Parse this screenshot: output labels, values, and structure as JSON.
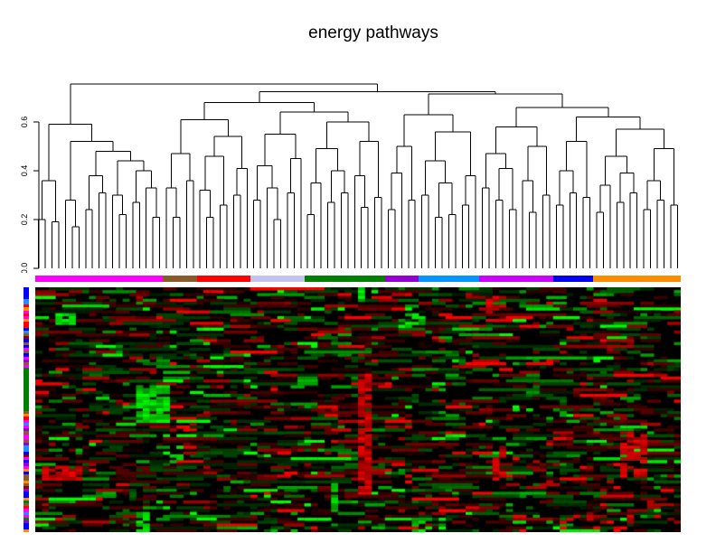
{
  "chart_data": {
    "type": "heatmap",
    "title": "energy pathways",
    "dendrogram_axis": {
      "ticks": [
        0,
        0.2,
        0.4,
        0.6
      ],
      "max_height": 0.755
    },
    "columns": 96,
    "rows": 85,
    "heatmap_palette": {
      "low": "#FF0000",
      "zero": "#000000",
      "high": "#00FF00"
    },
    "column_groups": [
      {
        "color": "#FF00FF",
        "count": 19
      },
      {
        "color": "#8B5A2B",
        "count": 5
      },
      {
        "color": "#FF0000",
        "count": 8
      },
      {
        "color": "#C3C3F0",
        "count": 8
      },
      {
        "color": "#008000",
        "count": 12
      },
      {
        "color": "#9400D3",
        "count": 5
      },
      {
        "color": "#0095FF",
        "count": 9
      },
      {
        "color": "#CC00FF",
        "count": 11
      },
      {
        "color": "#0000F0",
        "count": 6
      },
      {
        "color": "#FF8C00",
        "count": 13
      }
    ],
    "row_colors": [
      "#0000FF",
      "#0000FF",
      "#0000FF",
      "#0000FF",
      "#1E90FF",
      "#1E90FF",
      "#FF0000",
      "#FF8C00",
      "#FF00FF",
      "#FF0000",
      "#FF00FF",
      "#FF8C00",
      "#FF0000",
      "#FF0000",
      "#0000FF",
      "#1E90FF",
      "#8B5A2B",
      "#8B0000",
      "#0000FF",
      "#8B5A2B",
      "#0000FF",
      "#FF00FF",
      "#8B5A2B",
      "#0000FF",
      "#FF00FF",
      "#9400D3",
      "#8B5A2B",
      "#FF00FF",
      "#008000",
      "#008000",
      "#008000",
      "#008000",
      "#008000",
      "#008000",
      "#008000",
      "#008000",
      "#008000",
      "#008000",
      "#008000",
      "#008000",
      "#008000",
      "#008000",
      "#008000",
      "#8B5A2B",
      "#FF8C00",
      "#FF0000",
      "#FF00FF",
      "#1E90FF",
      "#FF00FF",
      "#9400D3",
      "#8B5A2B",
      "#FF00FF",
      "#FF00FF",
      "#8B5A2B",
      "#9400D3",
      "#1E90FF",
      "#1E90FF",
      "#0000FF",
      "#8B0000",
      "#FF00FF",
      "#0000FF",
      "#9400D3",
      "#FF00FF",
      "#FF8C00",
      "#0000FF",
      "#8B5A2B",
      "#8B5A2B",
      "#FF8C00",
      "#8B5A2B",
      "#8B0000",
      "#9400D3",
      "#0000FF",
      "#0000FF",
      "#FF8C00",
      "#008000",
      "#8B5A2B",
      "#FF0000",
      "#FF00FF",
      "#1E90FF",
      "#FF00FF",
      "#008000",
      "#9400D3",
      "#0000FF",
      "#0000FF",
      "#FF8C00"
    ],
    "dendrogram": [
      0.755,
      [
        0.59,
        [
          0.36,
          [
            0.2,
            0,
            0
          ],
          [
            0.19,
            0,
            0
          ]
        ],
        [
          0.52,
          [
            0.28,
            0,
            [
              0.17,
              0,
              0
            ]
          ],
          [
            0.48,
            [
              0.38,
              [
                0.24,
                0,
                0
              ],
              [
                0.31,
                0,
                0
              ]
            ],
            [
              0.44,
              [
                0.3,
                0,
                [
                  0.22,
                  0,
                  0
                ]
              ],
              [
                0.4,
                [
                  0.27,
                  0,
                  0
                ],
                [
                  0.33,
                  0,
                  [
                    0.21,
                    0,
                    0
                  ]
                ]
              ]
            ]
          ]
        ]
      ],
      [
        0.725,
        [
          0.68,
          [
            0.61,
            [
              0.47,
              [
                0.33,
                0,
                [
                  0.21,
                  0,
                  0
                ]
              ],
              [
                0.36,
                0,
                0
              ]
            ],
            [
              0.54,
              [
                0.46,
                [
                  0.32,
                  0,
                  [
                    0.21,
                    0,
                    0
                  ]
                ],
                [
                  0.26,
                  0,
                  0
                ]
              ],
              [
                0.41,
                [
                  0.3,
                  0,
                  0
                ],
                0
              ]
            ]
          ],
          [
            0.64,
            [
              0.55,
              [
                0.42,
                [
                  0.28,
                  0,
                  0
                ],
                [
                  0.33,
                  0,
                  [
                    0.2,
                    0,
                    0
                  ]
                ]
              ],
              [
                0.45,
                [
                  0.31,
                  0,
                  0
                ],
                0
              ]
            ],
            [
              0.6,
              [
                0.49,
                [
                  0.35,
                  [
                    0.22,
                    0,
                    0
                  ],
                  0
                ],
                [
                  0.4,
                  [
                    0.27,
                    0,
                    0
                  ],
                  [
                    0.31,
                    0,
                    0
                  ]
                ]
              ],
              [
                0.52,
                [
                  0.38,
                  0,
                  [
                    0.25,
                    0,
                    0
                  ]
                ],
                [
                  0.29,
                  0,
                  0
                ]
              ]
            ]
          ]
        ],
        [
          0.715,
          [
            0.63,
            [
              0.5,
              [
                0.39,
                [
                  0.24,
                  0,
                  0
                ],
                0
              ],
              [
                0.28,
                0,
                0
              ]
            ],
            [
              0.56,
              [
                0.44,
                [
                  0.3,
                  0,
                  0
                ],
                [
                  0.35,
                  [
                    0.21,
                    0,
                    0
                  ],
                  [
                    0.22,
                    0,
                    0
                  ]
                ]
              ],
              [
                0.38,
                [
                  0.26,
                  0,
                  0
                ],
                0
              ]
            ]
          ],
          [
            0.66,
            [
              0.58,
              [
                0.47,
                [
                  0.33,
                  0,
                  0
                ],
                [
                  0.41,
                  [
                    0.28,
                    0,
                    0
                  ],
                  [
                    0.24,
                    0,
                    0
                  ]
                ]
              ],
              [
                0.5,
                [
                  0.36,
                  0,
                  [
                    0.23,
                    0,
                    0
                  ]
                ],
                [
                  0.3,
                  0,
                  0
                ]
              ]
            ],
            [
              0.62,
              [
                0.52,
                [
                  0.4,
                  [
                    0.26,
                    0,
                    0
                  ],
                  [
                    0.31,
                    0,
                    0
                  ]
                ],
                [
                  0.29,
                  0,
                  0
                ]
              ],
              [
                0.57,
                [
                  0.46,
                  [
                    0.34,
                    [
                      0.23,
                      0,
                      0
                    ],
                    0
                  ],
                  [
                    0.39,
                    [
                      0.27,
                      0,
                      0
                    ],
                    [
                      0.31,
                      0,
                      0
                    ]
                  ]
                ],
                [
                  0.49,
                  [
                    0.36,
                    [
                      0.24,
                      0,
                      0
                    ],
                    [
                      0.28,
                      0,
                      0
                    ]
                  ],
                  [
                    0.26,
                    0,
                    0
                  ]
                ]
              ]
            ]
          ]
        ]
      ]
    ],
    "cell_texture": {
      "seed": 1337,
      "repeat_prob": 0.55,
      "levels": {
        "dim": 50,
        "low": 95,
        "mid": 160,
        "hi": 245
      },
      "distribution": [
        {
          "color": "black",
          "p": 0.4
        },
        {
          "color": "red",
          "level": "dim",
          "p": 0.13
        },
        {
          "color": "green",
          "level": "dim",
          "p": 0.13
        },
        {
          "color": "red",
          "level": "low",
          "p": 0.09
        },
        {
          "color": "green",
          "level": "low",
          "p": 0.09
        },
        {
          "color": "red",
          "level": "mid",
          "p": 0.05
        },
        {
          "color": "green",
          "level": "mid",
          "p": 0.05
        },
        {
          "color": "red",
          "level": "hi",
          "p": 0.03
        },
        {
          "color": "green",
          "level": "hi",
          "p": 0.03
        }
      ],
      "hotspots": [
        {
          "c0": 15,
          "c1": 19,
          "r0": 34,
          "r1": 46,
          "color": "green",
          "strength": 0.85
        },
        {
          "c0": 48,
          "c1": 49,
          "r0": 30,
          "r1": 70,
          "color": "red",
          "strength": 0.75
        },
        {
          "c0": 48,
          "c1": 48,
          "r0": 0,
          "r1": 4,
          "color": "green",
          "strength": 1.0
        },
        {
          "c0": 1,
          "c1": 6,
          "r0": 62,
          "r1": 66,
          "color": "red",
          "strength": 0.7
        },
        {
          "c0": 87,
          "c1": 90,
          "r0": 50,
          "r1": 65,
          "color": "red",
          "strength": 0.55
        },
        {
          "c0": 67,
          "c1": 69,
          "r0": 3,
          "r1": 9,
          "color": "red",
          "strength": 0.6
        },
        {
          "c0": 68,
          "c1": 69,
          "r0": 56,
          "r1": 66,
          "color": "red",
          "strength": 0.55
        },
        {
          "c0": 54,
          "c1": 57,
          "r0": 8,
          "r1": 13,
          "color": "green",
          "strength": 0.55
        },
        {
          "c0": 20,
          "c1": 22,
          "r0": 55,
          "r1": 60,
          "color": "green",
          "strength": 0.5
        },
        {
          "c0": 3,
          "c1": 5,
          "r0": 9,
          "r1": 12,
          "color": "green",
          "strength": 0.65
        },
        {
          "c0": 15,
          "c1": 16,
          "r0": 78,
          "r1": 84,
          "color": "green",
          "strength": 0.85
        },
        {
          "c0": 44,
          "c1": 44,
          "r0": 68,
          "r1": 78,
          "color": "green",
          "strength": 0.8
        },
        {
          "c0": 56,
          "c1": 60,
          "r0": 80,
          "r1": 84,
          "color": "green",
          "strength": 0.5
        },
        {
          "c0": 78,
          "c1": 88,
          "r0": 79,
          "r1": 83,
          "color": "red",
          "strength": 0.35
        }
      ]
    }
  }
}
